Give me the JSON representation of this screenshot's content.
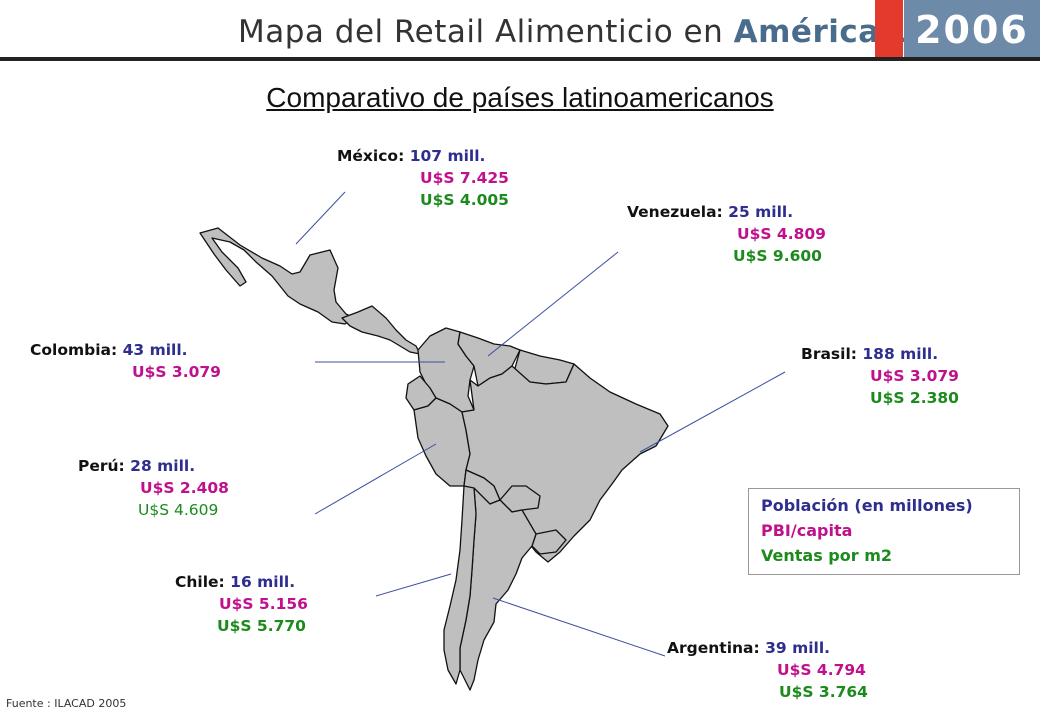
{
  "header": {
    "title_main": "Mapa del Retail Alimenticio en",
    "title_accent": "América Latina",
    "year": "2006",
    "brand_color": "#6d8aa8",
    "accent_red": "#e23b2e"
  },
  "subtitle": "Comparativo de países latinoamericanos",
  "colors": {
    "poblacion": "#2e2e8f",
    "pbi": "#c0108c",
    "ventas": "#1c8a1c",
    "land": "#bfbfbf",
    "leader_line": "#3b4fa0"
  },
  "countries": {
    "mexico": {
      "name": "México:",
      "poblacion": "107 mill.",
      "pbi": "U$S 7.425",
      "ventas": "U$S 4.005"
    },
    "venezuela": {
      "name": "Venezuela:",
      "poblacion": "25 mill.",
      "pbi": "U$S 4.809",
      "ventas": "U$S 9.600"
    },
    "colombia": {
      "name": "Colombia:",
      "poblacion": "43 mill.",
      "pbi": "U$S 3.079"
    },
    "brasil": {
      "name": "Brasil:",
      "poblacion": "188 mill.",
      "pbi": "U$S 3.079",
      "ventas": "U$S 2.380"
    },
    "peru": {
      "name": "Perú:",
      "poblacion": "28 mill.",
      "pbi": "U$S 2.408",
      "ventas": "U$S 4.609"
    },
    "chile": {
      "name": "Chile:",
      "poblacion": "16 mill.",
      "pbi": "U$S 5.156",
      "ventas": "U$S 5.770"
    },
    "argentina": {
      "name": "Argentina:",
      "poblacion": "39 mill.",
      "pbi": "U$S 4.794",
      "ventas": "U$S 3.764"
    }
  },
  "legend": {
    "poblacion": "Población (en millones)",
    "pbi": "PBI/capita",
    "ventas": "Ventas por m2"
  },
  "source": "Fuente : ILACAD 2005"
}
